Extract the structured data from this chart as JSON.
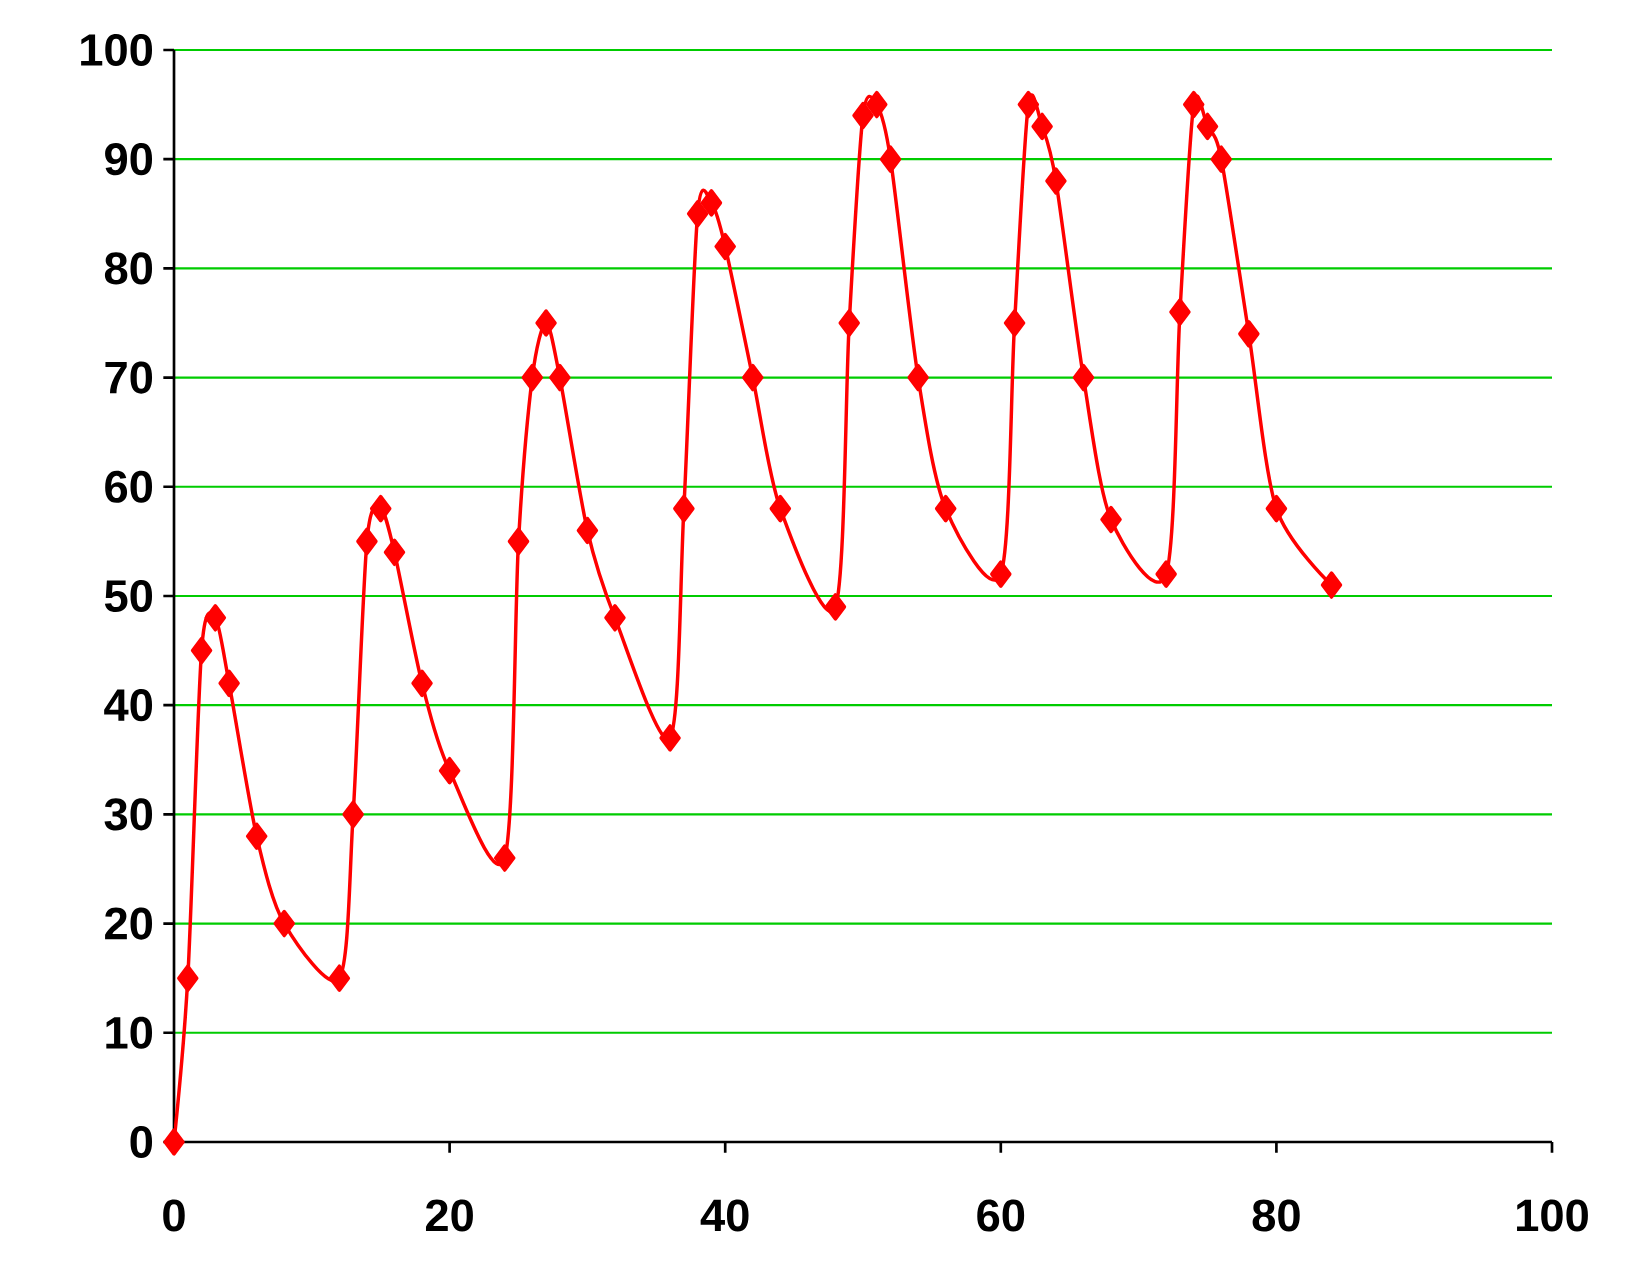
{
  "chart_data": {
    "type": "line",
    "x": [
      0,
      1,
      2,
      3,
      4,
      6,
      8,
      12,
      13,
      14,
      15,
      16,
      18,
      20,
      24,
      25,
      26,
      27,
      28,
      30,
      32,
      36,
      37,
      38,
      39,
      40,
      42,
      44,
      48,
      49,
      50,
      51,
      52,
      54,
      56,
      60,
      61,
      62,
      63,
      64,
      66,
      68,
      72,
      73,
      74,
      75,
      76,
      78,
      80,
      84
    ],
    "values": [
      0,
      15,
      45,
      48,
      42,
      28,
      20,
      15,
      30,
      55,
      58,
      54,
      42,
      34,
      26,
      55,
      70,
      75,
      70,
      56,
      48,
      37,
      58,
      85,
      86,
      82,
      70,
      58,
      49,
      75,
      94,
      95,
      90,
      70,
      58,
      52,
      75,
      95,
      93,
      88,
      70,
      57,
      52,
      76,
      95,
      93,
      90,
      74,
      58,
      51
    ],
    "color": "#ff0000",
    "marker": "diamond",
    "line_style": "solid",
    "grid": "y",
    "xlim": [
      0,
      100
    ],
    "ylim": [
      0,
      100
    ],
    "xticks": [
      0,
      20,
      40,
      60,
      80,
      100
    ],
    "yticks": [
      0,
      10,
      20,
      30,
      40,
      50,
      60,
      70,
      80,
      90,
      100
    ]
  }
}
